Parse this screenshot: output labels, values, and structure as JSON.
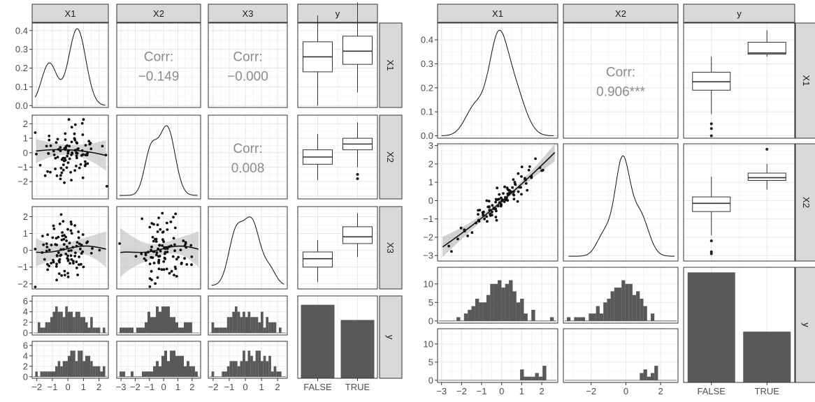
{
  "chart_data": [
    {
      "type": "pairs",
      "variables": [
        "X1",
        "X2",
        "X3",
        "y"
      ],
      "correlations": [
        {
          "pair": [
            "X1",
            "X2"
          ],
          "label": "Corr:",
          "value": "−0.149"
        },
        {
          "pair": [
            "X1",
            "X3"
          ],
          "label": "Corr:",
          "value": "−0.000"
        },
        {
          "pair": [
            "X2",
            "X3"
          ],
          "label": "Corr:",
          "value": "0.008"
        }
      ],
      "density_peaks": {
        "X1": 0.41
      },
      "boxplots": {
        "X1": {
          "FALSE": [
            0.0,
            0.18,
            0.26,
            0.34,
            0.48
          ],
          "TRUE": [
            0.07,
            0.22,
            0.29,
            0.37,
            0.55
          ]
        },
        "X2": {
          "FALSE": [
            -1.9,
            -0.8,
            -0.3,
            0.2,
            1.3
          ],
          "TRUE": [
            -1.0,
            0.2,
            0.6,
            1.0,
            2.1
          ],
          "TRUE_outliers": [
            -1.5,
            -1.8
          ]
        },
        "X3": {
          "FALSE": [
            -1.9,
            -1.0,
            -0.5,
            -0.1,
            0.6
          ],
          "TRUE": [
            -0.4,
            0.4,
            0.8,
            1.4,
            2.2
          ]
        }
      },
      "bar_counts": {
        "FALSE": 5.8,
        "TRUE": 4.6
      },
      "axes": {
        "X1": {
          "ticks": [
            "−2",
            "−1",
            "0",
            "1",
            "2"
          ],
          "range": [
            -2.3,
            2.6
          ]
        },
        "X2": {
          "ticks": [
            "−3",
            "−2",
            "−1",
            "0",
            "1",
            "2"
          ],
          "range": [
            -3.3,
            2.6
          ]
        },
        "X3": {
          "ticks": [
            "−2",
            "−1",
            "0",
            "1",
            "2"
          ],
          "range": [
            -2.3,
            2.6
          ]
        },
        "y": {
          "ticks": [
            "FALSE",
            "TRUE"
          ]
        },
        "X1_density_ticks": [
          "0.0",
          "0.1",
          "0.2",
          "0.3",
          "0.4"
        ],
        "X2_row_ticks": [
          "−2",
          "−1",
          "0",
          "1",
          "2"
        ],
        "X3_row_ticks": [
          "−2",
          "−1",
          "0",
          "1",
          "2"
        ],
        "y_row_ticks": [
          "0",
          "2",
          "4",
          "6"
        ]
      },
      "grid": true
    },
    {
      "type": "pairs",
      "variables": [
        "X1",
        "X2",
        "y"
      ],
      "correlations": [
        {
          "pair": [
            "X1",
            "X2"
          ],
          "label": "Corr:",
          "value": "0.906***"
        }
      ],
      "density_peaks": {
        "X1": 0.44
      },
      "boxplots": {
        "X1": {
          "FALSE": [
            0.09,
            0.19,
            0.225,
            0.265,
            0.33
          ],
          "TRUE": [
            0.33,
            0.34,
            0.345,
            0.39,
            0.44
          ],
          "FALSE_outliers": [
            0.05,
            0.03,
            0.0
          ]
        },
        "X2": {
          "FALSE": [
            -1.9,
            -0.6,
            -0.15,
            0.2,
            1.3
          ],
          "TRUE": [
            0.6,
            1.1,
            1.25,
            1.5,
            2.0
          ],
          "FALSE_outliers": [
            -2.2,
            -2.8,
            -2.9
          ],
          "TRUE_outliers": [
            2.8
          ]
        }
      },
      "bar_counts": {
        "FALSE": 13,
        "TRUE": 6
      },
      "axes": {
        "X1": {
          "ticks": [
            "−3",
            "−2",
            "−1",
            "0",
            "1",
            "2"
          ],
          "range": [
            -3.2,
            2.8
          ]
        },
        "X2": {
          "ticks": [
            "−2",
            "0",
            "2"
          ],
          "range": [
            -3.6,
            3.0
          ]
        },
        "y": {
          "ticks": [
            "FALSE",
            "TRUE"
          ]
        },
        "X1_density_ticks": [
          "0.0",
          "0.1",
          "0.2",
          "0.3",
          "0.4"
        ],
        "X2_row_ticks": [
          "−3",
          "−2",
          "−1",
          "0",
          "1",
          "2",
          "3"
        ],
        "y_row_ticks": [
          "0",
          "5",
          "10"
        ]
      },
      "grid": true
    }
  ]
}
